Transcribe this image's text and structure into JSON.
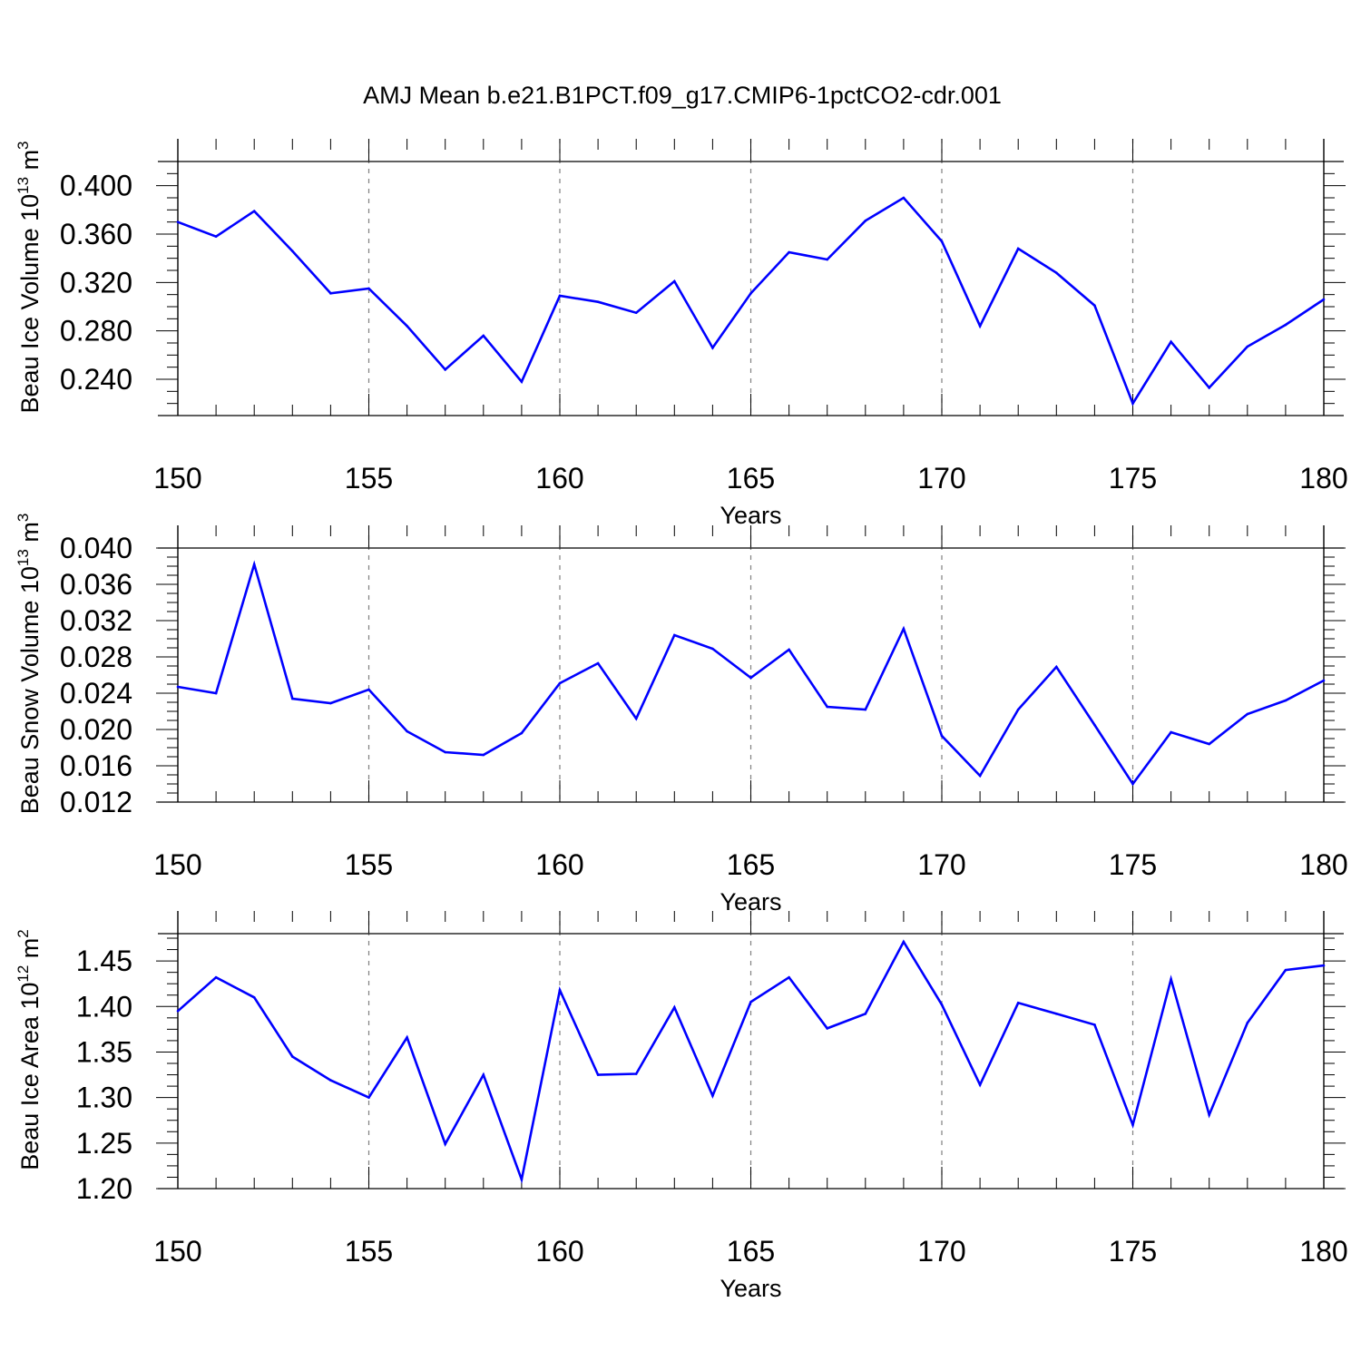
{
  "title": "AMJ Mean b.e21.B1PCT.f09_g17.CMIP6-1pctCO2-cdr.001",
  "line_color": "#0000ff",
  "chart_data": [
    {
      "type": "line",
      "ylabel": {
        "base": "Beau Ice Volume 10",
        "exp": "13",
        "unit": " m",
        "unit_exp": "3"
      },
      "xlabel": "Years",
      "xlim": [
        150,
        180
      ],
      "ylim": [
        0.21,
        0.42
      ],
      "xticks": [
        150,
        155,
        160,
        165,
        170,
        175,
        180
      ],
      "xtick_labels": [
        "150",
        "155",
        "160",
        "165",
        "170",
        "175",
        "180"
      ],
      "yticks": [
        0.24,
        0.28,
        0.32,
        0.36,
        0.4
      ],
      "ytick_labels": [
        "0.240",
        "0.280",
        "0.320",
        "0.360",
        "0.400"
      ],
      "x": [
        150,
        151,
        152,
        153,
        154,
        155,
        156,
        157,
        158,
        159,
        160,
        161,
        162,
        163,
        164,
        165,
        166,
        167,
        168,
        169,
        170,
        171,
        172,
        173,
        174,
        175,
        176,
        177,
        178,
        179,
        180
      ],
      "values": [
        0.37,
        0.358,
        0.379,
        0.346,
        0.311,
        0.315,
        0.284,
        0.248,
        0.276,
        0.238,
        0.309,
        0.304,
        0.295,
        0.321,
        0.266,
        0.311,
        0.345,
        0.339,
        0.371,
        0.39,
        0.354,
        0.284,
        0.348,
        0.328,
        0.301,
        0.22,
        0.271,
        0.233,
        0.267,
        0.285,
        0.306
      ]
    },
    {
      "type": "line",
      "ylabel": {
        "base": "Beau Snow Volume 10",
        "exp": "13",
        "unit": " m",
        "unit_exp": "3"
      },
      "xlabel": "Years",
      "xlim": [
        150,
        180
      ],
      "ylim": [
        0.012,
        0.04
      ],
      "xticks": [
        150,
        155,
        160,
        165,
        170,
        175,
        180
      ],
      "xtick_labels": [
        "150",
        "155",
        "160",
        "165",
        "170",
        "175",
        "180"
      ],
      "yticks": [
        0.012,
        0.016,
        0.02,
        0.024,
        0.028,
        0.032,
        0.036,
        0.04
      ],
      "ytick_labels": [
        "0.012",
        "0.016",
        "0.020",
        "0.024",
        "0.028",
        "0.032",
        "0.036",
        "0.040"
      ],
      "x": [
        150,
        151,
        152,
        153,
        154,
        155,
        156,
        157,
        158,
        159,
        160,
        161,
        162,
        163,
        164,
        165,
        166,
        167,
        168,
        169,
        170,
        171,
        172,
        173,
        174,
        175,
        176,
        177,
        178,
        179,
        180
      ],
      "values": [
        0.0247,
        0.024,
        0.0382,
        0.0234,
        0.0229,
        0.0244,
        0.0198,
        0.0175,
        0.0172,
        0.0196,
        0.0251,
        0.0273,
        0.0212,
        0.0304,
        0.0289,
        0.0257,
        0.0288,
        0.0225,
        0.0222,
        0.0311,
        0.0193,
        0.0149,
        0.0222,
        0.0269,
        0.0205,
        0.014,
        0.0197,
        0.0184,
        0.0217,
        0.0232,
        0.0254
      ]
    },
    {
      "type": "line",
      "ylabel": {
        "base": "Beau Ice Area 10",
        "exp": "12",
        "unit": " m",
        "unit_exp": "2"
      },
      "xlabel": "Years",
      "xlim": [
        150,
        180
      ],
      "ylim": [
        1.2,
        1.48
      ],
      "xticks": [
        150,
        155,
        160,
        165,
        170,
        175,
        180
      ],
      "xtick_labels": [
        "150",
        "155",
        "160",
        "165",
        "170",
        "175",
        "180"
      ],
      "yticks": [
        1.2,
        1.25,
        1.3,
        1.35,
        1.4,
        1.45
      ],
      "ytick_labels": [
        "1.20",
        "1.25",
        "1.30",
        "1.35",
        "1.40",
        "1.45"
      ],
      "x": [
        150,
        151,
        152,
        153,
        154,
        155,
        156,
        157,
        158,
        159,
        160,
        161,
        162,
        163,
        164,
        165,
        166,
        167,
        168,
        169,
        170,
        171,
        172,
        173,
        174,
        175,
        176,
        177,
        178,
        179,
        180
      ],
      "values": [
        1.395,
        1.432,
        1.41,
        1.345,
        1.319,
        1.3,
        1.366,
        1.249,
        1.325,
        1.21,
        1.418,
        1.325,
        1.326,
        1.399,
        1.302,
        1.405,
        1.432,
        1.376,
        1.392,
        1.471,
        1.402,
        1.314,
        1.404,
        1.392,
        1.38,
        1.27,
        1.43,
        1.281,
        1.382,
        1.44,
        1.445
      ]
    }
  ]
}
